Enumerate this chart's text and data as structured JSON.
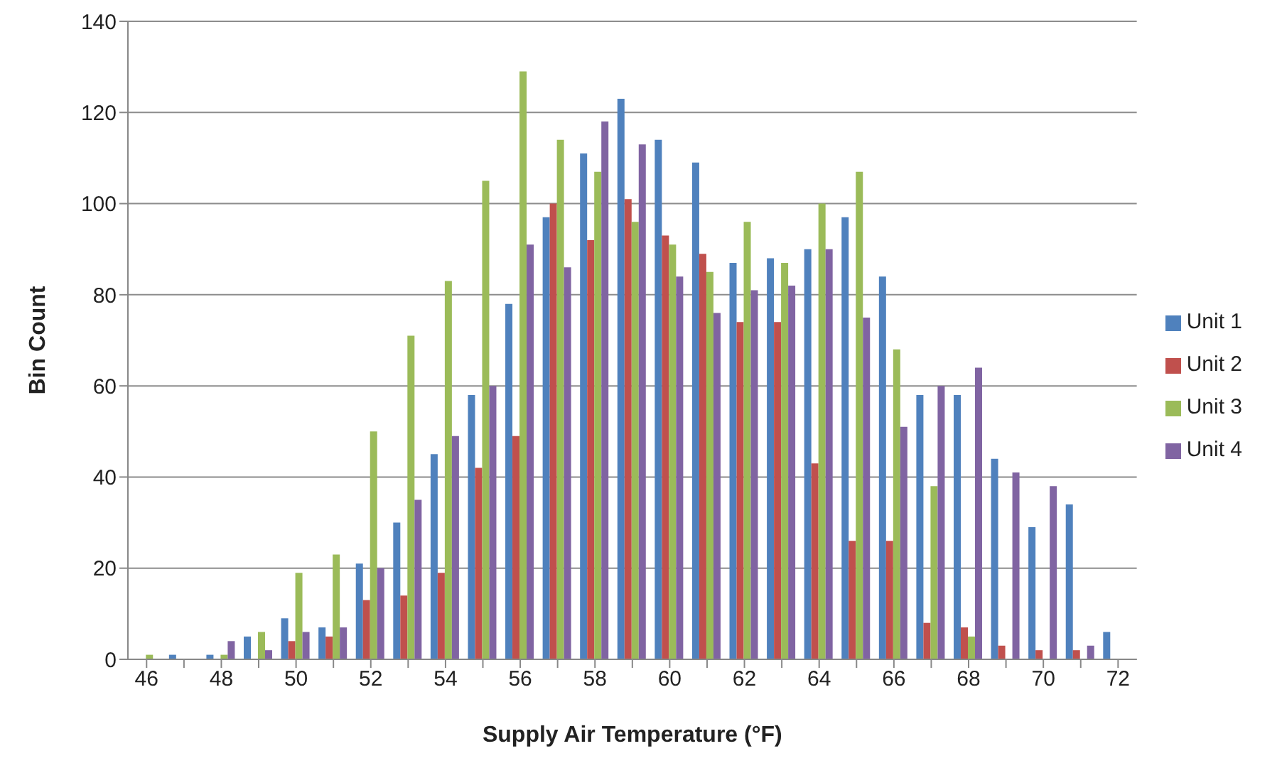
{
  "chart_data": {
    "type": "bar",
    "xlabel": "Supply Air Temperature (°F)",
    "ylabel": "Bin Count",
    "categories": [
      "46",
      null,
      "48",
      null,
      "50",
      null,
      "52",
      null,
      "54",
      null,
      "56",
      null,
      "58",
      null,
      "60",
      null,
      "62",
      null,
      "64",
      null,
      "66",
      null,
      "68",
      null,
      "70",
      null,
      "72"
    ],
    "series": [
      {
        "name": "Unit 1",
        "color": "#4f81bd",
        "values": [
          0,
          1,
          1,
          5,
          9,
          7,
          21,
          30,
          45,
          58,
          78,
          97,
          111,
          123,
          114,
          109,
          87,
          88,
          90,
          97,
          84,
          58,
          58,
          44,
          29,
          34,
          6
        ]
      },
      {
        "name": "Unit 2",
        "color": "#c0504d",
        "values": [
          0,
          0,
          0,
          0,
          4,
          5,
          13,
          14,
          19,
          42,
          49,
          100,
          92,
          101,
          93,
          89,
          74,
          74,
          43,
          26,
          26,
          8,
          7,
          3,
          2,
          2,
          0
        ]
      },
      {
        "name": "Unit 3",
        "color": "#9bbb59",
        "values": [
          1,
          0,
          1,
          6,
          19,
          23,
          50,
          71,
          83,
          105,
          129,
          114,
          107,
          96,
          91,
          85,
          96,
          87,
          100,
          107,
          68,
          38,
          5,
          0,
          0,
          0,
          0
        ]
      },
      {
        "name": "Unit 4",
        "color": "#8064a2",
        "values": [
          0,
          0,
          4,
          2,
          6,
          7,
          20,
          35,
          49,
          60,
          91,
          86,
          118,
          113,
          84,
          76,
          81,
          82,
          90,
          75,
          51,
          60,
          64,
          41,
          38,
          3,
          0
        ]
      }
    ],
    "ylim": [
      0,
      140
    ],
    "yticks": [
      0,
      20,
      40,
      60,
      80,
      100,
      120,
      140
    ],
    "grid": "y",
    "legend": "right"
  }
}
